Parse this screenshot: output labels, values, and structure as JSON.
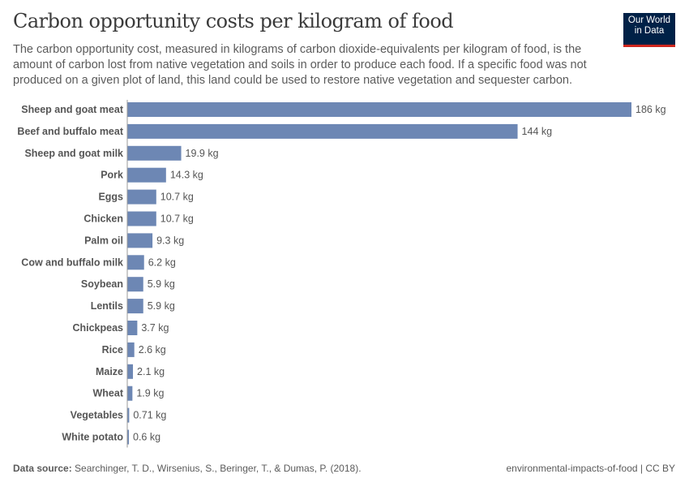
{
  "header": {
    "title": "Carbon opportunity costs per kilogram of food",
    "subtitle": "The carbon opportunity cost, measured in kilograms of carbon dioxide-equivalents per kilogram of food, is the amount of carbon lost from native vegetation and soils in order to produce each food. If a specific food was not produced on a given plot of land, this land could be used to restore native vegetation and sequester carbon.",
    "logo_line1": "Our World",
    "logo_line2": "in Data"
  },
  "footer": {
    "source_label": "Data source:",
    "source_text": " Searchinger, T. D., Wirsenius, S., Beringer, T., & Dumas, P. (2018).",
    "right": "environmental-impacts-of-food | CC BY"
  },
  "colors": {
    "bar": "#6d87b4",
    "logo_bg": "#002147",
    "logo_accent": "#ce261e"
  },
  "chart_data": {
    "type": "bar",
    "orientation": "horizontal",
    "unit": "kg",
    "categories": [
      "Sheep and goat meat",
      "Beef and buffalo meat",
      "Sheep and goat milk",
      "Pork",
      "Eggs",
      "Chicken",
      "Palm oil",
      "Cow and buffalo milk",
      "Soybean",
      "Lentils",
      "Chickpeas",
      "Rice",
      "Maize",
      "Wheat",
      "Vegetables",
      "White potato"
    ],
    "values": [
      186,
      144,
      19.9,
      14.3,
      10.7,
      10.7,
      9.3,
      6.2,
      5.9,
      5.9,
      3.7,
      2.6,
      2.1,
      1.9,
      0.71,
      0.6
    ],
    "labels": [
      "186 kg",
      "144 kg",
      "19.9 kg",
      "14.3 kg",
      "10.7 kg",
      "10.7 kg",
      "9.3 kg",
      "6.2 kg",
      "5.9 kg",
      "5.9 kg",
      "3.7 kg",
      "2.6 kg",
      "2.1 kg",
      "1.9 kg",
      "0.71 kg",
      "0.6 kg"
    ],
    "xlim": [
      0,
      186
    ],
    "grid": false
  }
}
